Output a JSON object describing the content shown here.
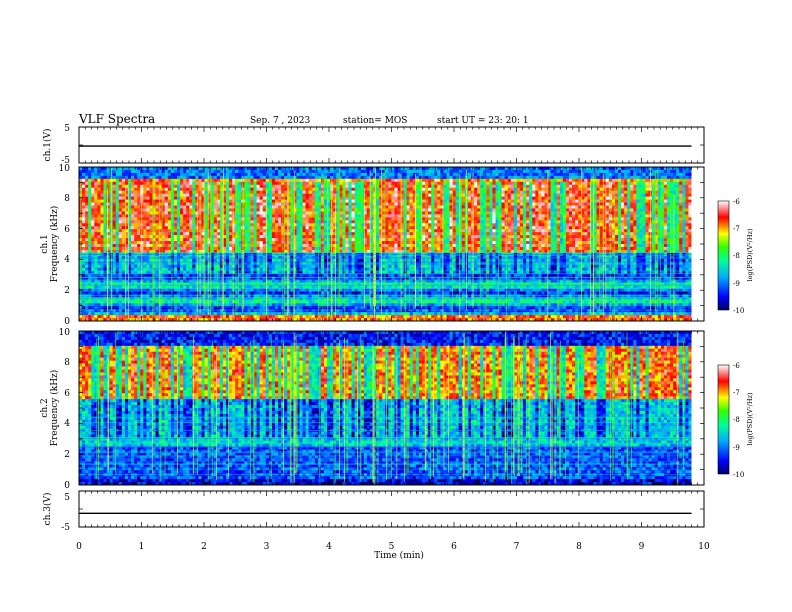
{
  "header": {
    "title": "VLF Spectra",
    "date": "Sep. 7 , 2023",
    "station": "station= MOS",
    "start": "start  UT =   23: 20: 1"
  },
  "chart_data": [
    {
      "type": "line",
      "panel": "ch1-waveform",
      "ylabel": "ch.1(V)",
      "ylim": [
        -5,
        5
      ],
      "yticks": [
        "5",
        "-5"
      ],
      "xlim": [
        0,
        10
      ],
      "x": [
        0,
        9.8
      ],
      "values": [
        -0.3,
        -0.3
      ]
    },
    {
      "type": "heatmap",
      "panel": "ch1-spectrogram",
      "ylabel": "Frequency (kHz)",
      "channel_label": "ch.1",
      "ylim": [
        0,
        10
      ],
      "yticks": [
        "0",
        "2",
        "4",
        "6",
        "8",
        "10"
      ],
      "xlim": [
        0,
        10
      ],
      "data_xmax": 9.8,
      "colorbar": {
        "label": "log(PSD)(V²/Hz)",
        "range": [
          -10,
          -6
        ],
        "ticks": [
          "-6",
          "-7",
          "-8",
          "-9",
          "-10"
        ]
      }
    },
    {
      "type": "heatmap",
      "panel": "ch2-spectrogram",
      "ylabel": "Frequency (kHz)",
      "channel_label": "ch.2",
      "ylim": [
        0,
        10
      ],
      "yticks": [
        "0",
        "2",
        "4",
        "6",
        "8",
        "10"
      ],
      "xlim": [
        0,
        10
      ],
      "data_xmax": 9.8,
      "colorbar": {
        "label": "log(PSD)(V²/Hz)",
        "range": [
          -10,
          -6
        ],
        "ticks": [
          "-6",
          "-7",
          "-8",
          "-9",
          "-10"
        ]
      }
    },
    {
      "type": "line",
      "panel": "ch3-waveform",
      "ylabel": "ch.3(V)",
      "ylim": [
        -5,
        5
      ],
      "yticks": [
        "5",
        "-5"
      ],
      "xlim": [
        0,
        10
      ],
      "x": [
        0,
        9.8
      ],
      "values": [
        -1.2,
        -1.2
      ]
    }
  ],
  "xaxis": {
    "label": "Time (min)",
    "ticks": [
      "0",
      "1",
      "2",
      "3",
      "4",
      "5",
      "6",
      "7",
      "8",
      "9",
      "10"
    ]
  }
}
